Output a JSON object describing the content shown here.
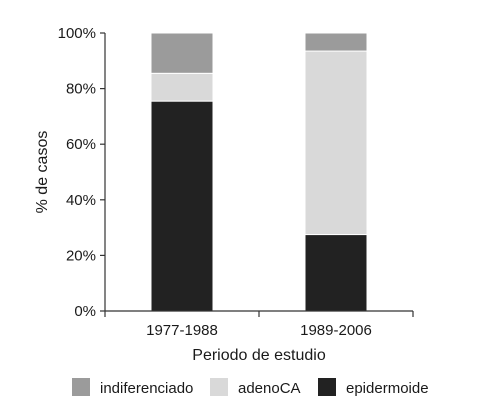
{
  "chart_data": {
    "type": "bar",
    "stacked": true,
    "categories": [
      "1977-1988",
      "1989-2006"
    ],
    "series": [
      {
        "name": "epidermoide",
        "values": [
          75.5,
          27.5
        ],
        "color": "#222222"
      },
      {
        "name": "adenoCA",
        "values": [
          10,
          66
        ],
        "color": "#d9d9d9"
      },
      {
        "name": "indiferenciado",
        "values": [
          14.5,
          6.5
        ],
        "color": "#9b9b9b"
      }
    ],
    "legend_order": [
      "indiferenciado",
      "adenoCA",
      "epidermoide"
    ],
    "title": "",
    "xlabel": "Periodo de estudio",
    "ylabel": "% de casos",
    "ylim": [
      0,
      100
    ],
    "yticks": [
      "0%",
      "20%",
      "40%",
      "60%",
      "80%",
      "100%"
    ],
    "legend_position": "bottom",
    "grid": false
  }
}
